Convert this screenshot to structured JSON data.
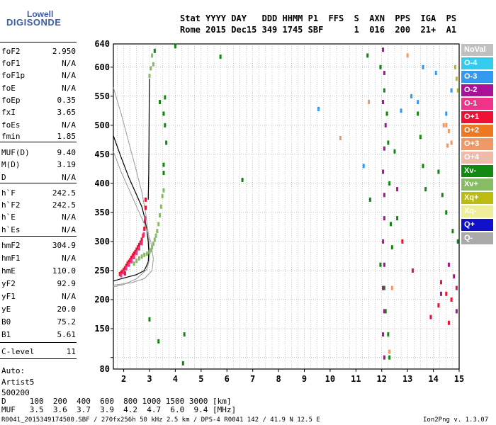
{
  "logo": {
    "top": "Lowell",
    "bottom": "DIGISONDE"
  },
  "header": {
    "line1": "Stat YYYY DAY   DDD HHMM P1  FFS  S  AXN  PPS  IGA  PS",
    "line2": "Rome 2015 Dec15 349 1745 SBF      1  016  200  21+  A1"
  },
  "params": [
    {
      "name": "foF2",
      "value": "2.950"
    },
    {
      "name": "foF1",
      "value": "N/A"
    },
    {
      "name": "foF1p",
      "value": "N/A"
    },
    {
      "name": "foE",
      "value": "N/A"
    },
    {
      "name": "foEp",
      "value": "0.35"
    },
    {
      "name": "fxI",
      "value": "3.65"
    },
    {
      "name": "foEs",
      "value": "N/A"
    },
    {
      "name": "fmin",
      "value": "1.85"
    },
    {
      "name": "MUF(D)",
      "value": "9.40"
    },
    {
      "name": "M(D)",
      "value": "3.19"
    },
    {
      "name": "D",
      "value": "N/A"
    },
    {
      "name": "h`F",
      "value": "242.5"
    },
    {
      "name": "h`F2",
      "value": "242.5"
    },
    {
      "name": "h`E",
      "value": "N/A"
    },
    {
      "name": "h`Es",
      "value": "N/A"
    },
    {
      "name": "hmF2",
      "value": "304.9"
    },
    {
      "name": "hmF1",
      "value": "N/A"
    },
    {
      "name": "hmE",
      "value": "110.0"
    },
    {
      "name": "yF2",
      "value": "92.9"
    },
    {
      "name": "yF1",
      "value": "N/A"
    },
    {
      "name": "yE",
      "value": "20.0"
    },
    {
      "name": "B0",
      "value": "75.2"
    },
    {
      "name": "B1",
      "value": "5.61"
    },
    {
      "name": "C-level",
      "value": "11"
    }
  ],
  "auto": {
    "line1": "Auto:",
    "line2": "Artist5",
    "line3": "500200"
  },
  "muf_table": {
    "d_row": "D     100  200  400  600  800 1000 1500 3000 [km]",
    "muf_row": "MUF   3.5  3.6  3.7  3.9  4.2  4.7  6.0  9.4 [MHz]"
  },
  "footer": {
    "left": "R0041_2015349174500.SBF / 270fx256h 50 kHz 2.5 km / DPS-4 R0041 142 / 41.9 N 12.5 E",
    "right": "Ion2Png v. 1.3.07"
  },
  "legend": [
    {
      "label": "NoVal",
      "bg": "#c0c0c0",
      "fg": "#ffffff"
    },
    {
      "label": "O-4",
      "bg": "#33ccee",
      "fg": "#ffffff"
    },
    {
      "label": "O-3",
      "bg": "#3399ee",
      "fg": "#ffffff"
    },
    {
      "label": "O-2",
      "bg": "#aa1199",
      "fg": "#ffffff"
    },
    {
      "label": "O-1",
      "bg": "#ee3388",
      "fg": "#ffffff"
    },
    {
      "label": "O+1",
      "bg": "#ee1133",
      "fg": "#ffffff"
    },
    {
      "label": "O+2",
      "bg": "#ee7722",
      "fg": "#ffffff"
    },
    {
      "label": "O+3",
      "bg": "#ee9966",
      "fg": "#ffffff"
    },
    {
      "label": "O+4",
      "bg": "#eebbaa",
      "fg": "#ffffff"
    },
    {
      "label": "Xv-",
      "bg": "#118811",
      "fg": "#ffffff"
    },
    {
      "label": "Xv+",
      "bg": "#88bb66",
      "fg": "#ffffff"
    },
    {
      "label": "Xq+",
      "bg": "#bbbb11",
      "fg": "#ffffff"
    },
    {
      "label": "Xq-",
      "bg": "#eeee99",
      "fg": "#ffffff"
    },
    {
      "label": "Q+",
      "bg": "#1111cc",
      "fg": "#ffffff"
    },
    {
      "label": "Q-",
      "bg": "#aaaaaa",
      "fg": "#ffffff"
    }
  ],
  "chart_data": {
    "type": "scatter",
    "title": "",
    "xlabel": "",
    "ylabel": "",
    "xlim": [
      1.6,
      15.0
    ],
    "ylim": [
      80,
      640
    ],
    "x_ticks": [
      2,
      3,
      4,
      5,
      6,
      7,
      8,
      9,
      10,
      11,
      12,
      13,
      14,
      15
    ],
    "y_ticks": [
      150,
      200,
      250,
      300,
      350,
      400,
      450,
      500,
      550,
      600,
      640,
      80
    ],
    "grid": true,
    "series": [
      {
        "color": "#ee1133",
        "points": [
          [
            1.85,
            244
          ],
          [
            1.9,
            246
          ],
          [
            1.95,
            248
          ],
          [
            2.0,
            251
          ],
          [
            2.05,
            254
          ],
          [
            2.1,
            258
          ],
          [
            2.15,
            262
          ],
          [
            2.2,
            265
          ],
          [
            2.25,
            268
          ],
          [
            2.3,
            272
          ],
          [
            2.35,
            276
          ],
          [
            2.4,
            279
          ],
          [
            2.45,
            282
          ],
          [
            2.5,
            286
          ],
          [
            2.55,
            290
          ],
          [
            2.6,
            294
          ],
          [
            2.65,
            298
          ],
          [
            2.7,
            303
          ],
          [
            2.75,
            310
          ],
          [
            2.8,
            322
          ],
          [
            2.82,
            335
          ],
          [
            2.85,
            358
          ],
          [
            2.85,
            372
          ]
        ]
      },
      {
        "color": "#ee3388",
        "points": [
          [
            1.9,
            242
          ],
          [
            2.0,
            247
          ],
          [
            2.1,
            254
          ],
          [
            2.2,
            260
          ],
          [
            2.3,
            266
          ],
          [
            2.4,
            273
          ],
          [
            2.5,
            280
          ],
          [
            2.6,
            288
          ],
          [
            2.7,
            297
          ],
          [
            2.78,
            312
          ],
          [
            2.83,
            340
          ]
        ]
      },
      {
        "color": "#88bb66",
        "points": [
          [
            2.4,
            262
          ],
          [
            2.5,
            267
          ],
          [
            2.6,
            271
          ],
          [
            2.7,
            274
          ],
          [
            2.8,
            277
          ],
          [
            2.9,
            279
          ],
          [
            3.0,
            282
          ],
          [
            3.05,
            285
          ],
          [
            3.1,
            290
          ],
          [
            3.15,
            296
          ],
          [
            3.2,
            303
          ],
          [
            3.25,
            310
          ],
          [
            3.3,
            318
          ],
          [
            3.35,
            330
          ],
          [
            3.4,
            345
          ],
          [
            3.45,
            360
          ],
          [
            3.5,
            378
          ],
          [
            3.55,
            388
          ],
          [
            3.1,
            620
          ],
          [
            3.15,
            605
          ],
          [
            3.05,
            598
          ],
          [
            3.0,
            585
          ]
        ]
      },
      {
        "color": "#118811",
        "points": [
          [
            3.2,
            628
          ],
          [
            3.4,
            540
          ],
          [
            3.55,
            520
          ],
          [
            3.6,
            548
          ],
          [
            3.6,
            500
          ],
          [
            3.65,
            470
          ],
          [
            3.55,
            432
          ],
          [
            3.55,
            418
          ],
          [
            4.0,
            636
          ],
          [
            3.35,
            128
          ],
          [
            3.0,
            166
          ],
          [
            4.35,
            140
          ],
          [
            4.3,
            90
          ],
          [
            5.75,
            618
          ],
          [
            6.6,
            406
          ],
          [
            11.95,
            600
          ],
          [
            12.1,
            560
          ],
          [
            12.2,
            520
          ],
          [
            12.25,
            470
          ],
          [
            12.3,
            400
          ],
          [
            12.35,
            330
          ],
          [
            12.4,
            290
          ],
          [
            11.95,
            260
          ],
          [
            12.1,
            220
          ],
          [
            12.15,
            180
          ],
          [
            12.25,
            140
          ],
          [
            12.3,
            100
          ],
          [
            12.5,
            455
          ],
          [
            12.6,
            340
          ],
          [
            13.4,
            520
          ],
          [
            13.5,
            480
          ],
          [
            13.6,
            430
          ],
          [
            13.7,
            390
          ],
          [
            14.2,
            420
          ],
          [
            14.35,
            380
          ],
          [
            14.5,
            350
          ],
          [
            14.75,
            318
          ],
          [
            14.95,
            300
          ],
          [
            11.55,
            372
          ],
          [
            11.45,
            620
          ]
        ]
      },
      {
        "color": "#aa1199",
        "points": [
          [
            12.05,
            630
          ],
          [
            12.1,
            590
          ],
          [
            12.05,
            540
          ],
          [
            12.15,
            500
          ],
          [
            12.1,
            460
          ],
          [
            12.05,
            420
          ],
          [
            12.1,
            380
          ],
          [
            12.1,
            340
          ],
          [
            12.05,
            300
          ],
          [
            12.1,
            260
          ],
          [
            12.05,
            220
          ],
          [
            12.1,
            180
          ],
          [
            12.05,
            140
          ],
          [
            12.1,
            100
          ],
          [
            12.6,
            390
          ],
          [
            14.6,
            260
          ],
          [
            14.8,
            240
          ],
          [
            14.3,
            210
          ],
          [
            14.9,
            180
          ]
        ]
      },
      {
        "color": "#3399ee",
        "points": [
          [
            13.15,
            550
          ],
          [
            13.4,
            540
          ],
          [
            13.6,
            600
          ],
          [
            14.1,
            590
          ],
          [
            14.5,
            520
          ],
          [
            9.55,
            528
          ],
          [
            12.75,
            525
          ],
          [
            11.3,
            430
          ],
          [
            14.7,
            560
          ]
        ]
      },
      {
        "color": "#ee9966",
        "points": [
          [
            14.5,
            500
          ],
          [
            14.6,
            490
          ],
          [
            14.7,
            470
          ],
          [
            14.55,
            465
          ],
          [
            14.4,
            500
          ],
          [
            10.4,
            478
          ],
          [
            11.5,
            540
          ],
          [
            12.4,
            220
          ],
          [
            12.3,
            110
          ],
          [
            13.0,
            620
          ]
        ]
      },
      {
        "color": "#ee1133",
        "points": [
          [
            14.3,
            230
          ],
          [
            14.5,
            210
          ],
          [
            14.7,
            200
          ],
          [
            14.9,
            220
          ],
          [
            14.2,
            190
          ],
          [
            13.9,
            170
          ],
          [
            14.6,
            160
          ],
          [
            12.8,
            300
          ],
          [
            13.2,
            250
          ],
          [
            2.05,
            245
          ]
        ]
      },
      {
        "color": "#bbbb11",
        "points": [
          [
            14.85,
            600
          ],
          [
            14.9,
            580
          ],
          [
            14.95,
            560
          ]
        ]
      }
    ],
    "curves": [
      {
        "color": "#000000",
        "desc": "profile",
        "points": [
          [
            1.6,
            482
          ],
          [
            1.9,
            445
          ],
          [
            2.2,
            410
          ],
          [
            2.5,
            380
          ],
          [
            2.7,
            360
          ],
          [
            2.82,
            340
          ],
          [
            2.9,
            318
          ],
          [
            2.95,
            300
          ],
          [
            2.97,
            280
          ],
          [
            2.95,
            265
          ],
          [
            2.8,
            250
          ],
          [
            2.5,
            243
          ],
          [
            2.0,
            237
          ],
          [
            1.6,
            232
          ]
        ]
      },
      {
        "color": "#000000",
        "desc": "trace",
        "points": [
          [
            2.95,
            372
          ],
          [
            2.97,
            420
          ],
          [
            2.98,
            480
          ],
          [
            2.99,
            540
          ],
          [
            3.0,
            580
          ]
        ]
      },
      {
        "color": "#999999",
        "desc": "bound1",
        "points": [
          [
            1.6,
            565
          ],
          [
            1.9,
            520
          ],
          [
            2.2,
            470
          ],
          [
            2.5,
            420
          ],
          [
            2.7,
            385
          ],
          [
            2.85,
            350
          ],
          [
            2.95,
            315
          ],
          [
            3.0,
            290
          ],
          [
            3.0,
            270
          ],
          [
            2.9,
            252
          ],
          [
            2.5,
            236
          ],
          [
            2.0,
            226
          ],
          [
            1.6,
            222
          ]
        ]
      },
      {
        "color": "#999999",
        "desc": "bound2",
        "points": [
          [
            1.6,
            455
          ],
          [
            1.9,
            420
          ],
          [
            2.2,
            390
          ],
          [
            2.5,
            360
          ],
          [
            2.8,
            330
          ],
          [
            3.05,
            300
          ],
          [
            3.15,
            270
          ],
          [
            3.1,
            250
          ],
          [
            2.8,
            236
          ],
          [
            2.3,
            229
          ],
          [
            1.6,
            225
          ]
        ]
      }
    ]
  }
}
